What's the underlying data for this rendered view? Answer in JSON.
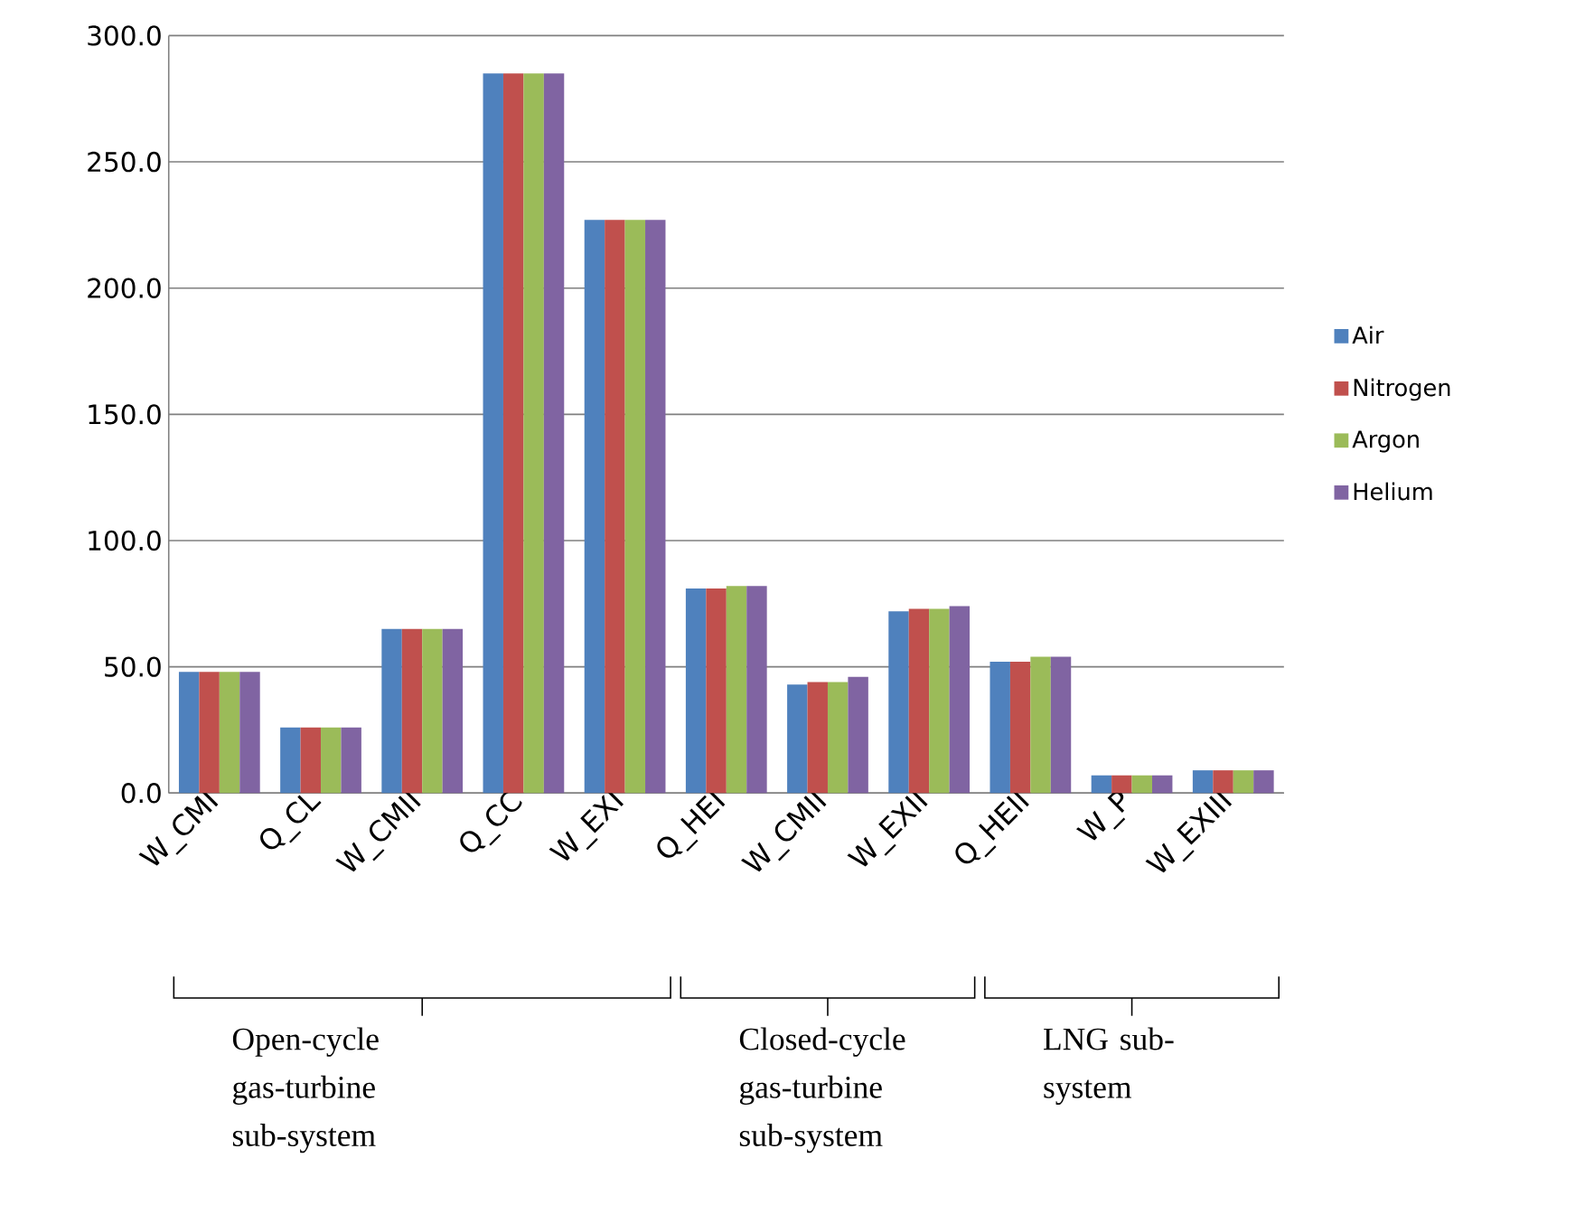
{
  "chart_data": {
    "type": "bar",
    "categories": [
      "W_CMI",
      "Q_CL",
      "W_CMII",
      "Q_CC",
      "W_EXI",
      "Q_HEI",
      "W_CMII",
      "W_EXII",
      "Q_HEII",
      "W_P",
      "W_EXIII"
    ],
    "series": [
      {
        "name": "Air",
        "color": "#4f81bd",
        "values": [
          48,
          26,
          65,
          285,
          227,
          81,
          43,
          72,
          52,
          7,
          9
        ]
      },
      {
        "name": "Nitrogen",
        "color": "#c0504d",
        "values": [
          48,
          26,
          65,
          285,
          227,
          81,
          44,
          73,
          52,
          7,
          9
        ]
      },
      {
        "name": "Argon",
        "color": "#9bbb59",
        "values": [
          48,
          26,
          65,
          285,
          227,
          82,
          44,
          73,
          54,
          7,
          9
        ]
      },
      {
        "name": "Helium",
        "color": "#8064a2",
        "values": [
          48,
          26,
          65,
          285,
          227,
          82,
          46,
          74,
          54,
          7,
          9
        ]
      }
    ],
    "ylim": [
      0,
      300
    ],
    "yticks": [
      {
        "value": 0,
        "label": "0.0"
      },
      {
        "value": 50,
        "label": "50.0"
      },
      {
        "value": 100,
        "label": "100.0"
      },
      {
        "value": 150,
        "label": "150.0"
      },
      {
        "value": 200,
        "label": "200.0"
      },
      {
        "value": 250,
        "label": "250.0"
      },
      {
        "value": 300,
        "label": "300.0"
      }
    ],
    "grid": "y",
    "legend": "right",
    "annotations": [
      "Open-cycle gas-turbine sub-system",
      "Closed-cycle gas-turbine sub-system",
      "LNG sub-system"
    ]
  }
}
